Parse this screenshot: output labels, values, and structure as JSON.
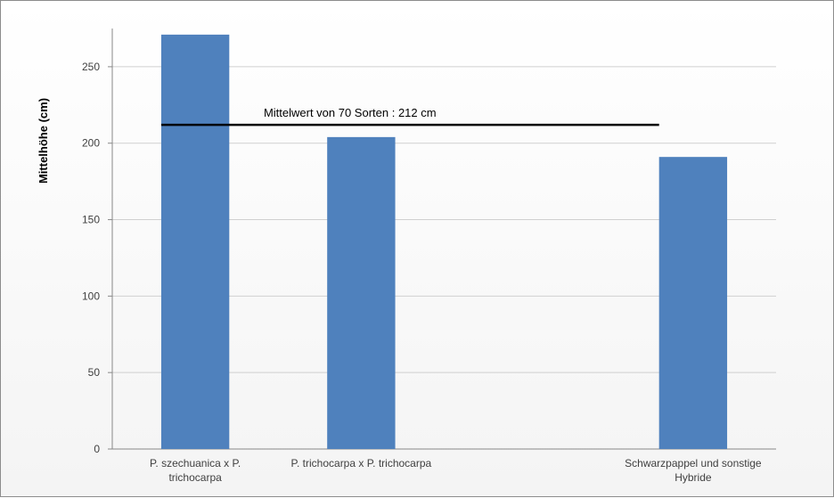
{
  "chart_data": {
    "type": "bar",
    "categories": [
      [
        "P. szechuanica x P.",
        "trichocarpa"
      ],
      [
        "P. trichocarpa x P. trichocarpa"
      ],
      [
        ""
      ],
      [
        "Schwarzpappel und sonstige",
        "Hybride"
      ]
    ],
    "values": [
      271,
      204,
      null,
      191
    ],
    "xlabel": "",
    "ylabel": "Mittelhöhe (cm)",
    "ylim": [
      0,
      275
    ],
    "yticks": [
      0,
      50,
      100,
      150,
      200,
      250
    ],
    "grid": true,
    "bar_color": "#4f81bd",
    "reference_line": {
      "value": 212,
      "label": "Mittelwert von  70 Sorten : 212 cm",
      "from_category": 0,
      "to_category": 3
    }
  }
}
